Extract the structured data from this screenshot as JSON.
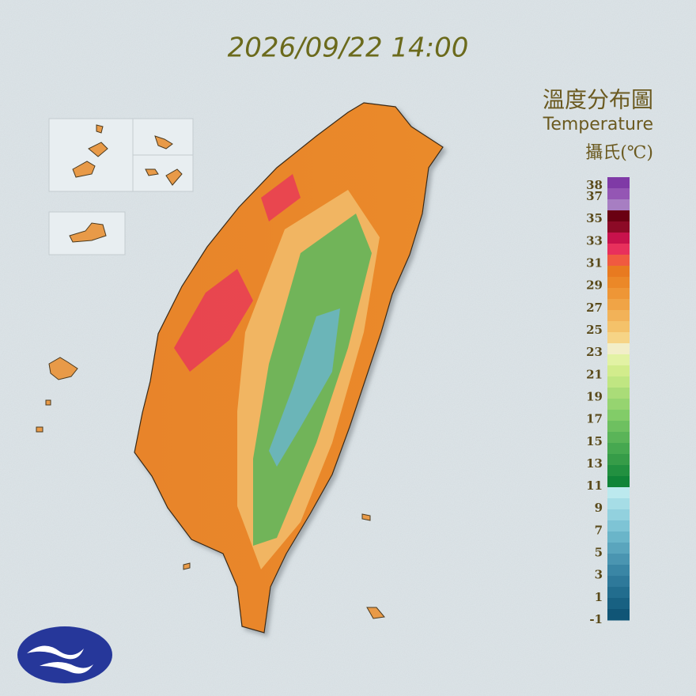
{
  "title": "2026/09/22 14:00",
  "legend": {
    "title": "溫度分布圖",
    "subtitle": "Temperature",
    "unit": "攝氏(℃)",
    "ticks": [
      38,
      37,
      35,
      33,
      31,
      29,
      27,
      25,
      23,
      21,
      19,
      17,
      15,
      13,
      11,
      9,
      7,
      5,
      3,
      1,
      -1
    ],
    "colors": [
      "#7f3aa6",
      "#9456b4",
      "#a77ec2",
      "#6a0012",
      "#8c0a26",
      "#c8124c",
      "#e8305c",
      "#f05a40",
      "#e87a20",
      "#eb8828",
      "#ee9636",
      "#f0a446",
      "#f2b258",
      "#f4c26a",
      "#f6d486",
      "#f2eec8",
      "#e2f2a4",
      "#d2ec8c",
      "#c0e682",
      "#aadc78",
      "#96d470",
      "#82cc68",
      "#6ec060",
      "#5ab458",
      "#46a850",
      "#369c48",
      "#229040",
      "#108438",
      "#bce9ee",
      "#a6dde6",
      "#92d1de",
      "#7ec4d5",
      "#6ab5c9",
      "#5aa5bd",
      "#4a95b1",
      "#3a86a5",
      "#2e799a",
      "#226d8e",
      "#186182",
      "#105576"
    ]
  }
}
